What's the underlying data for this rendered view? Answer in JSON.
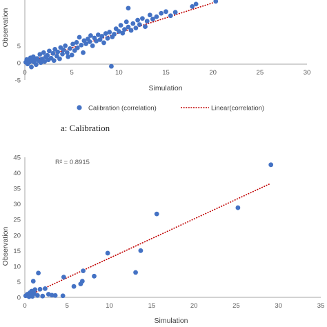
{
  "colors": {
    "marker": "#4472C4",
    "trend": "#C00000",
    "axis": "#A6A6A6",
    "text": "#595959"
  },
  "caption_a": "a: Calibration",
  "legend": {
    "calibration_label": "Calibration (correlation)",
    "linear_label": "Linear(correlation)"
  },
  "chart_data": [
    {
      "type": "scatter",
      "xlabel": "Simulation",
      "ylabel": "Observation",
      "xlim": [
        0,
        30
      ],
      "ylim": [
        -5,
        20
      ],
      "xticks": [
        "0",
        "5",
        "10",
        "15",
        "20",
        "25",
        "30"
      ],
      "yticks": [
        "-5",
        "0",
        "5"
      ],
      "trendline": {
        "x": [
          0,
          20.5
        ],
        "y": [
          0,
          18
        ]
      },
      "points": [
        [
          0.1,
          0.2
        ],
        [
          0.2,
          1.0
        ],
        [
          0.3,
          -0.3
        ],
        [
          0.4,
          0.8
        ],
        [
          0.5,
          0.3
        ],
        [
          0.6,
          1.5
        ],
        [
          0.7,
          -1.2
        ],
        [
          0.8,
          0.5
        ],
        [
          0.9,
          1.8
        ],
        [
          1.0,
          0.2
        ],
        [
          1.1,
          0.9
        ],
        [
          1.2,
          -0.5
        ],
        [
          1.3,
          1.3
        ],
        [
          1.5,
          0.6
        ],
        [
          1.6,
          2.5
        ],
        [
          1.7,
          0.1
        ],
        [
          1.8,
          1.1
        ],
        [
          2.0,
          3.0
        ],
        [
          2.1,
          0.4
        ],
        [
          2.2,
          1.7
        ],
        [
          2.4,
          2.2
        ],
        [
          2.5,
          0.9
        ],
        [
          2.6,
          3.5
        ],
        [
          2.8,
          1.4
        ],
        [
          3.0,
          2.8
        ],
        [
          3.1,
          0.7
        ],
        [
          3.2,
          4.0
        ],
        [
          3.4,
          2.0
        ],
        [
          3.5,
          3.2
        ],
        [
          3.7,
          1.2
        ],
        [
          3.8,
          4.5
        ],
        [
          4.0,
          2.6
        ],
        [
          4.1,
          3.8
        ],
        [
          4.3,
          5.0
        ],
        [
          4.5,
          3.0
        ],
        [
          4.6,
          1.8
        ],
        [
          4.8,
          4.2
        ],
        [
          5.0,
          2.3
        ],
        [
          5.1,
          5.5
        ],
        [
          5.3,
          3.6
        ],
        [
          5.5,
          6.0
        ],
        [
          5.6,
          4.4
        ],
        [
          5.8,
          7.5
        ],
        [
          6.0,
          5.2
        ],
        [
          6.2,
          3.0
        ],
        [
          6.3,
          6.5
        ],
        [
          6.5,
          5.6
        ],
        [
          6.7,
          7.0
        ],
        [
          6.9,
          6.2
        ],
        [
          7.0,
          8.0
        ],
        [
          7.2,
          5.0
        ],
        [
          7.4,
          7.3
        ],
        [
          7.6,
          6.4
        ],
        [
          7.8,
          8.2
        ],
        [
          8.0,
          6.8
        ],
        [
          8.2,
          7.8
        ],
        [
          8.4,
          5.9
        ],
        [
          8.6,
          8.6
        ],
        [
          8.8,
          7.2
        ],
        [
          9.0,
          9.0
        ],
        [
          9.2,
          -1.0
        ],
        [
          9.3,
          7.6
        ],
        [
          9.5,
          8.4
        ],
        [
          9.7,
          10.0
        ],
        [
          10.0,
          9.2
        ],
        [
          10.2,
          11.0
        ],
        [
          10.4,
          8.7
        ],
        [
          10.6,
          9.8
        ],
        [
          10.8,
          12.0
        ],
        [
          11.0,
          10.5
        ],
        [
          11.0,
          16.0
        ],
        [
          11.3,
          9.5
        ],
        [
          11.5,
          11.5
        ],
        [
          11.8,
          10.2
        ],
        [
          12.0,
          12.5
        ],
        [
          12.2,
          11.2
        ],
        [
          12.5,
          13.0
        ],
        [
          12.8,
          10.6
        ],
        [
          13.0,
          12.2
        ],
        [
          13.3,
          14.0
        ],
        [
          13.6,
          12.8
        ],
        [
          14.0,
          13.5
        ],
        [
          14.5,
          14.5
        ],
        [
          15.0,
          15.0
        ],
        [
          15.5,
          13.8
        ],
        [
          16.0,
          14.8
        ],
        [
          17.8,
          16.5
        ],
        [
          18.2,
          17.2
        ],
        [
          20.3,
          18.0
        ]
      ]
    },
    {
      "type": "scatter",
      "xlabel": "Simulation",
      "ylabel": "Observation",
      "annotation": "R² = 0.8915",
      "xlim": [
        0,
        35
      ],
      "ylim": [
        0,
        45
      ],
      "xticks": [
        "0",
        "5",
        "10",
        "15",
        "20",
        "25",
        "30",
        "35"
      ],
      "yticks": [
        "0",
        "5",
        "10",
        "15",
        "20",
        "25",
        "30",
        "35",
        "40",
        "45"
      ],
      "trendline": {
        "x": [
          0,
          29
        ],
        "y": [
          0,
          36.5
        ]
      },
      "points": [
        [
          0.1,
          0.5
        ],
        [
          0.3,
          1.0
        ],
        [
          0.5,
          0.2
        ],
        [
          0.6,
          1.5
        ],
        [
          0.7,
          0.8
        ],
        [
          0.8,
          2.0
        ],
        [
          0.9,
          0.3
        ],
        [
          1.0,
          5.2
        ],
        [
          1.1,
          1.2
        ],
        [
          1.2,
          2.5
        ],
        [
          1.5,
          0.6
        ],
        [
          1.6,
          7.8
        ],
        [
          1.8,
          2.6
        ],
        [
          2.1,
          0.4
        ],
        [
          2.4,
          2.8
        ],
        [
          2.8,
          1.0
        ],
        [
          3.2,
          0.7
        ],
        [
          3.6,
          0.6
        ],
        [
          4.5,
          0.5
        ],
        [
          4.6,
          6.5
        ],
        [
          5.8,
          3.5
        ],
        [
          6.6,
          4.3
        ],
        [
          6.8,
          5.2
        ],
        [
          6.9,
          8.5
        ],
        [
          8.2,
          6.8
        ],
        [
          9.8,
          14.2
        ],
        [
          13.1,
          8.0
        ],
        [
          13.7,
          15.0
        ],
        [
          15.6,
          26.8
        ],
        [
          25.2,
          28.8
        ],
        [
          29.1,
          42.6
        ]
      ]
    }
  ]
}
